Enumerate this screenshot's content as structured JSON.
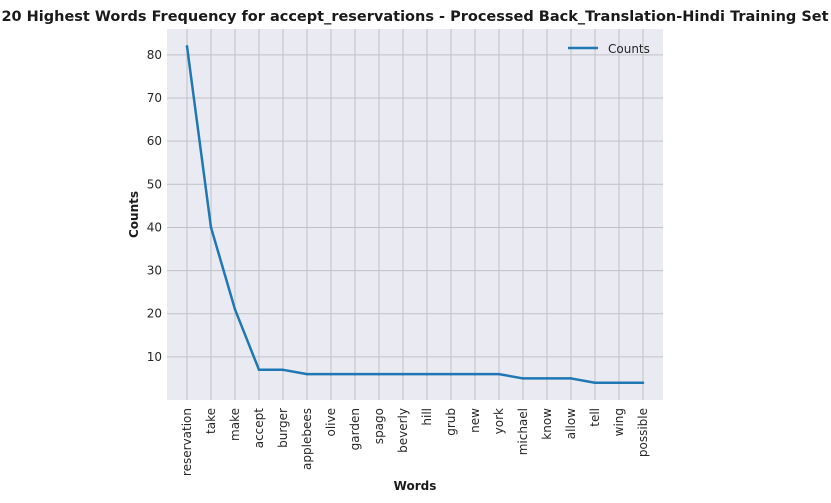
{
  "chart_data": {
    "type": "line",
    "title": "20 Highest Words Frequency for accept_reservations - Processed Back_Translation-Hindi Training Set",
    "xlabel": "Words",
    "ylabel": "Counts",
    "categories": [
      "reservation",
      "take",
      "make",
      "accept",
      "burger",
      "applebees",
      "olive",
      "garden",
      "spago",
      "beverly",
      "hill",
      "grub",
      "new",
      "york",
      "michael",
      "know",
      "allow",
      "tell",
      "wing",
      "possible"
    ],
    "series": [
      {
        "name": "Counts",
        "values": [
          82,
          40,
          21,
          7,
          7,
          6,
          6,
          6,
          6,
          6,
          6,
          6,
          6,
          6,
          5,
          5,
          5,
          4,
          4,
          4
        ]
      }
    ],
    "yticks": [
      10,
      20,
      30,
      40,
      50,
      60,
      70,
      80
    ],
    "ylim": [
      0,
      86
    ],
    "grid": true,
    "legend_position": "top-right",
    "colors": {
      "line": "#1f77b4",
      "plot_bg": "#eaeaf2",
      "grid": "#c0c0c6"
    }
  }
}
